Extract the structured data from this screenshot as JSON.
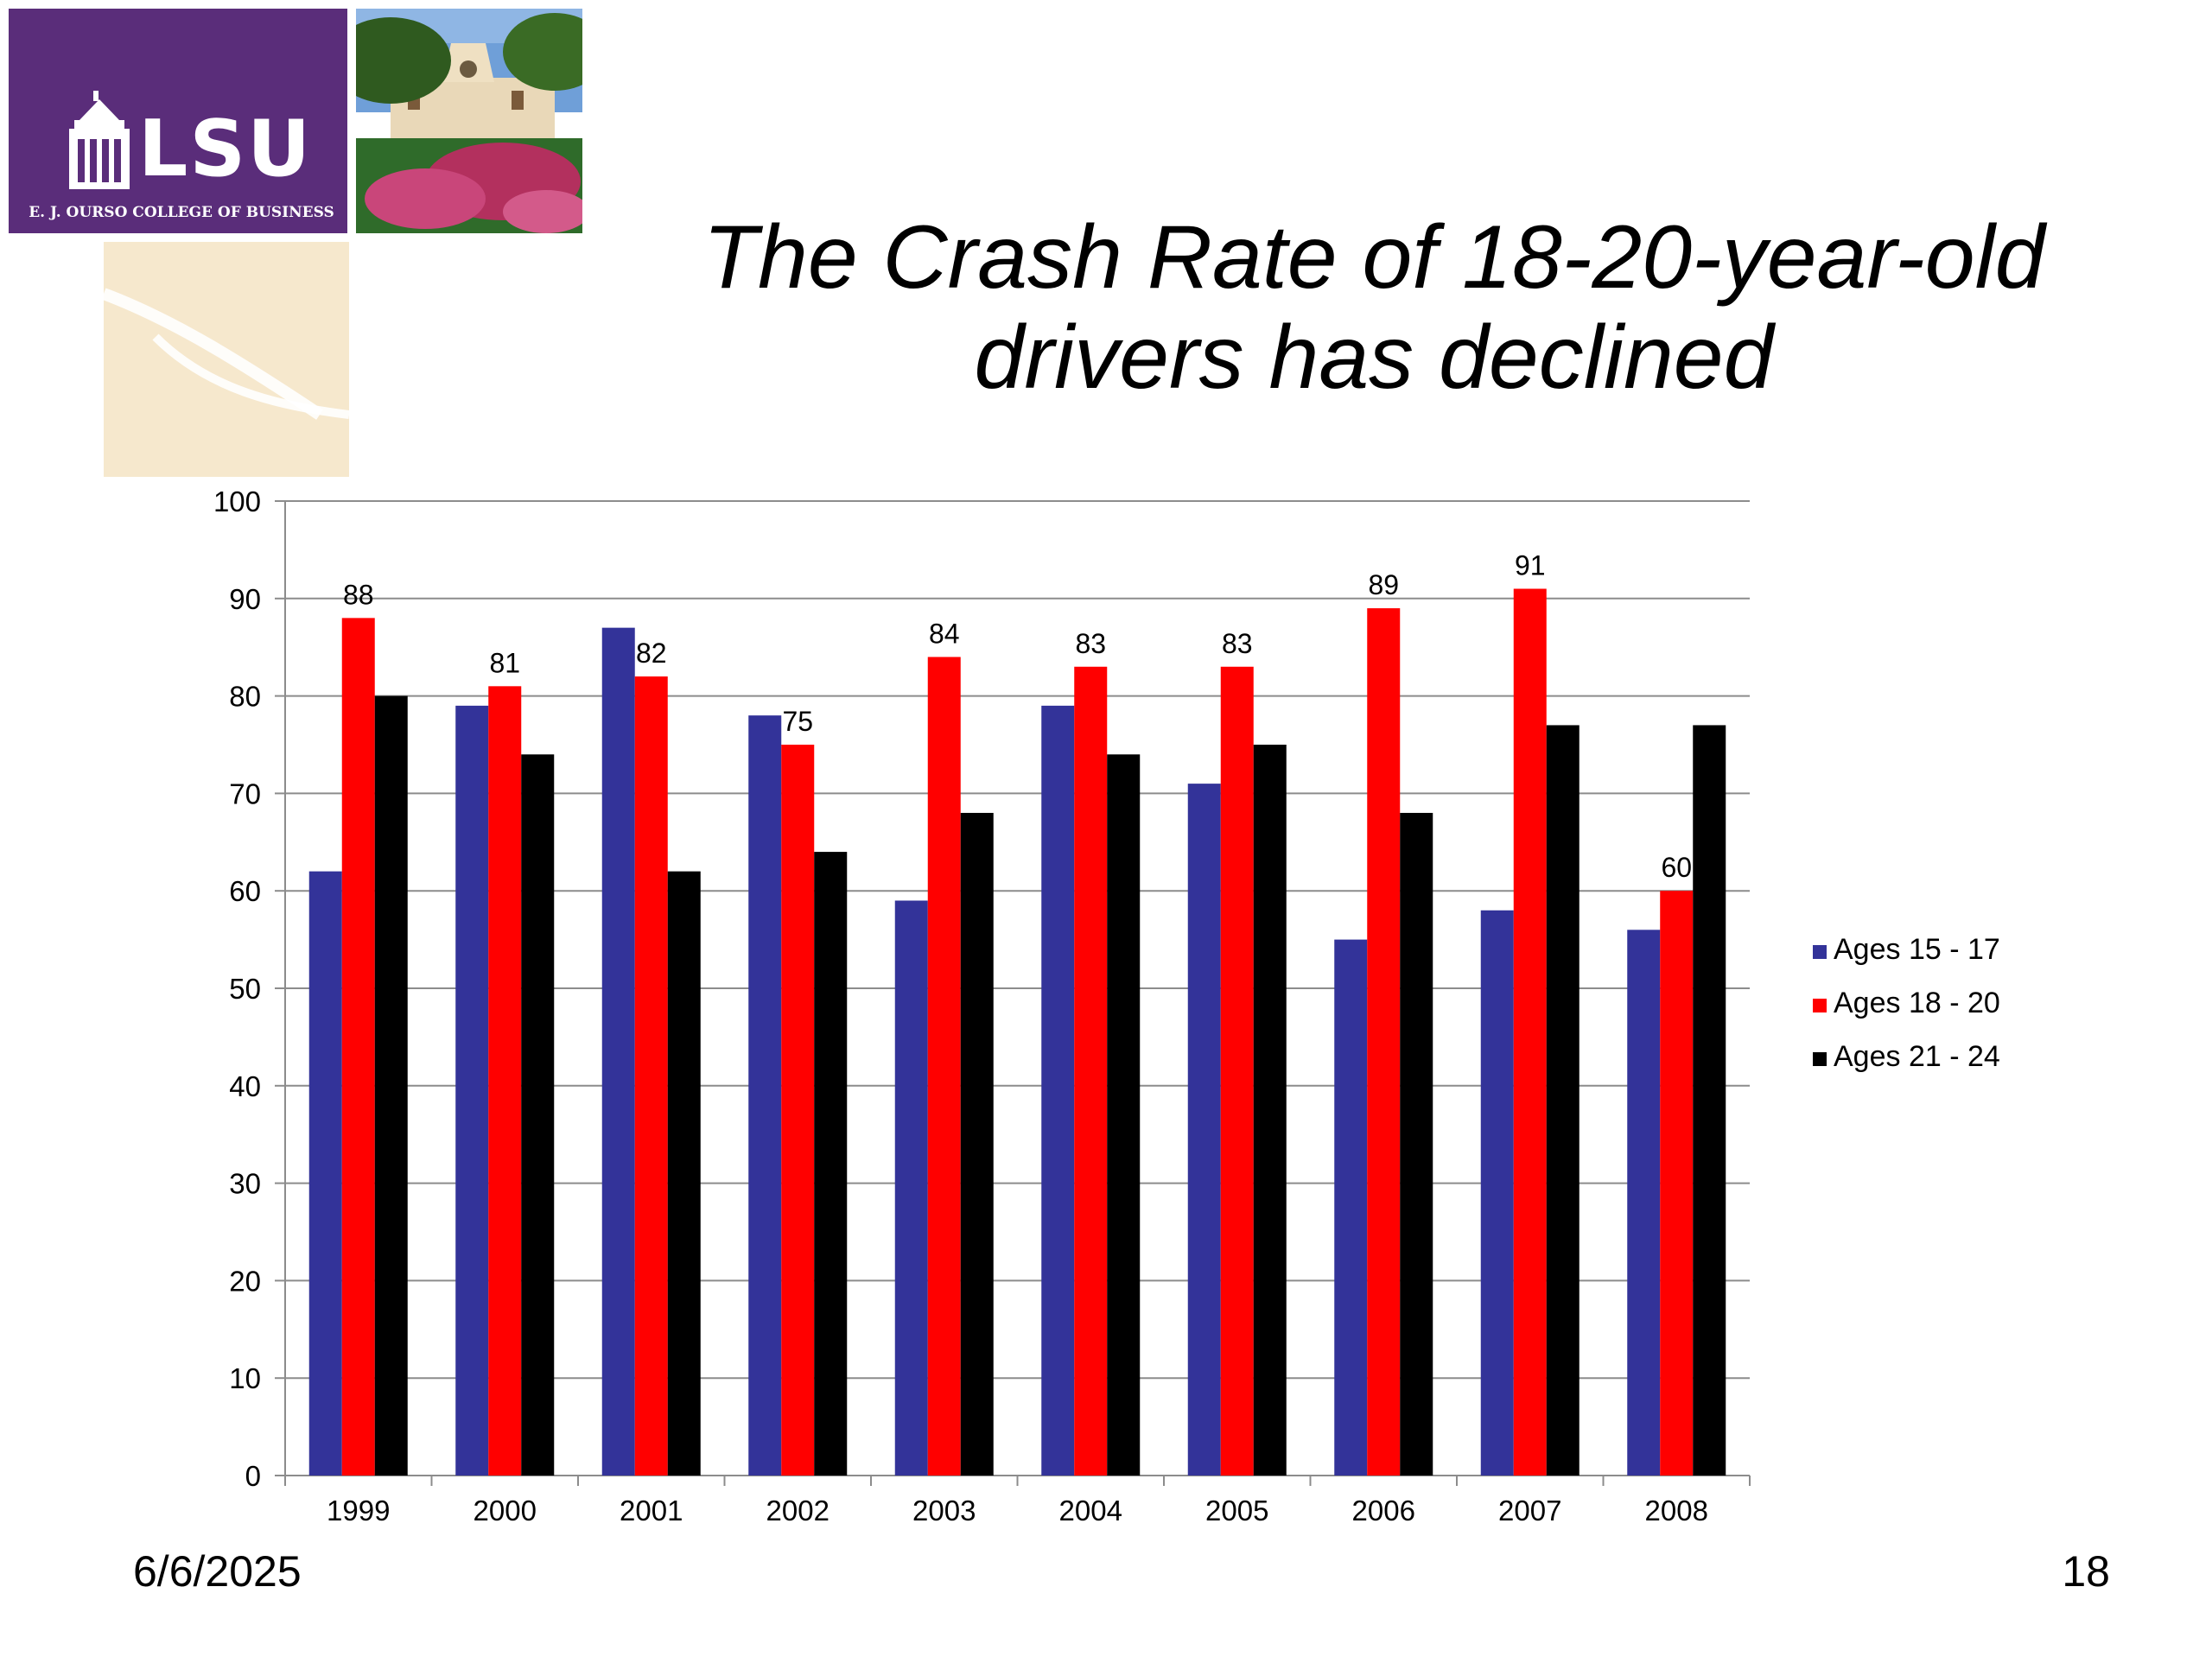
{
  "branding": {
    "logo_text": "LSU",
    "logo_subtitle": "E. J. OURSO COLLEGE OF BUSINESS",
    "brand_purple": "#5a2d7a",
    "cream": "#f6e8cd"
  },
  "slide": {
    "title_line1": "The Crash Rate of 18-20-year-old",
    "title_line2": "drivers has declined",
    "date": "6/6/2025",
    "page_number": "18"
  },
  "chart_data": {
    "type": "bar",
    "title": "",
    "xlabel": "",
    "ylabel": "",
    "ylim": [
      0,
      100
    ],
    "yticks": [
      0,
      10,
      20,
      30,
      40,
      50,
      60,
      70,
      80,
      90,
      100
    ],
    "grid": true,
    "legend_position": "right",
    "categories": [
      "1999",
      "2000",
      "2001",
      "2002",
      "2003",
      "2004",
      "2005",
      "2006",
      "2007",
      "2008"
    ],
    "series": [
      {
        "name": "Ages 15 - 17",
        "color": "#333399",
        "values": [
          62,
          79,
          87,
          78,
          59,
          79,
          71,
          55,
          58,
          56
        ],
        "show_labels": false
      },
      {
        "name": "Ages 18 - 20",
        "color": "#ff0000",
        "values": [
          88,
          81,
          82,
          75,
          84,
          83,
          83,
          89,
          91,
          60
        ],
        "show_labels": true
      },
      {
        "name": "Ages 21 - 24",
        "color": "#000000",
        "values": [
          80,
          74,
          62,
          64,
          68,
          74,
          75,
          68,
          77,
          77
        ],
        "show_labels": false
      }
    ]
  }
}
